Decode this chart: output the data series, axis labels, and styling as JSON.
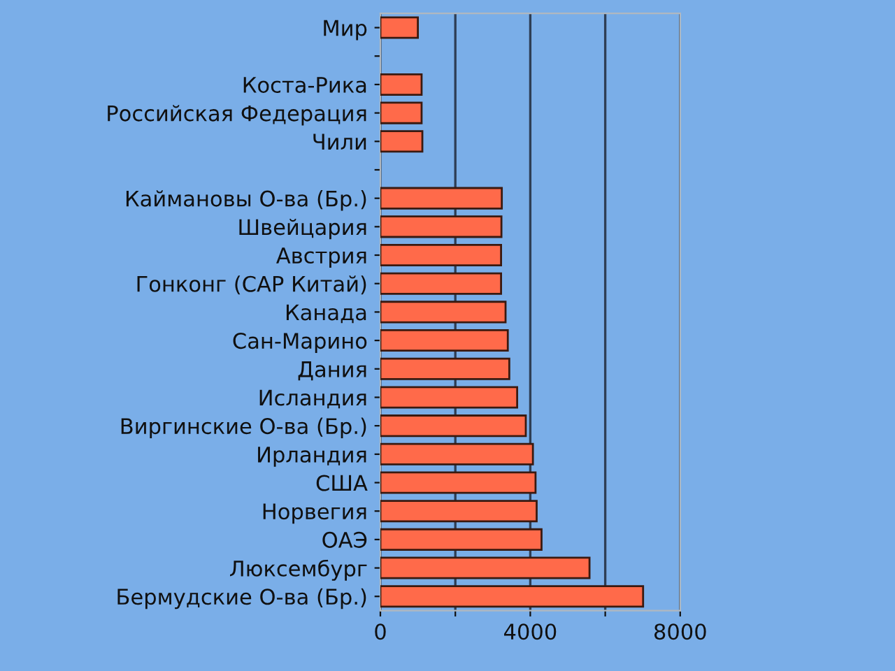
{
  "chart_data": {
    "type": "bar",
    "orientation": "horizontal",
    "categories": [
      "Мир",
      null,
      "Коста-Рика",
      "Российская Федерация",
      "Чили",
      null,
      "Каймановы О-ва (Бр.)",
      "Швейцария",
      "Австрия",
      "Гонконг (САР Китай)",
      "Канада",
      "Сан-Марино",
      "Дания",
      "Исландия",
      "Виргинские О-ва (Бр.)",
      "Ирландия",
      "США",
      "Норвегия",
      "ОАЭ",
      "Люксембург",
      "Бермудские О-ва (Бр.)"
    ],
    "values": [
      1000,
      null,
      1100,
      1100,
      1120,
      null,
      3240,
      3230,
      3220,
      3220,
      3340,
      3400,
      3440,
      3650,
      3880,
      4070,
      4140,
      4170,
      4300,
      5580,
      7010
    ],
    "color": "#ff6a4a",
    "xlim": [
      0,
      8000
    ],
    "xticks": [
      0,
      {
        "value": 2000,
        "label": null
      },
      4000,
      {
        "value": 6000,
        "label": null
      },
      8000
    ],
    "grid": "x"
  }
}
